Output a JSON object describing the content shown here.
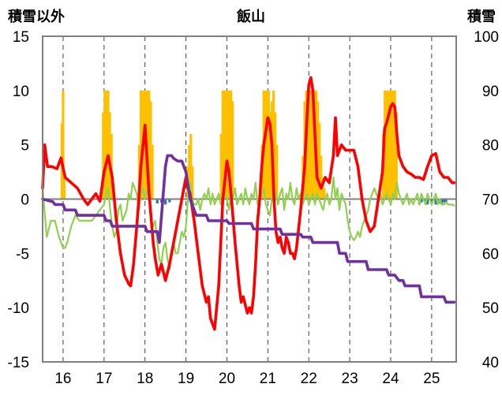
{
  "chart_data": {
    "type": "line",
    "title": "飯山",
    "ylabel_left": "積雪以外",
    "ylabel_right": "積雪",
    "ylim_left": [
      -15,
      15
    ],
    "ylim_right": [
      40,
      100
    ],
    "yticks_left": [
      "15",
      "10",
      "5",
      "0",
      "-5",
      "-10",
      "-15"
    ],
    "yticks_right": [
      "100",
      "90",
      "80",
      "70",
      "60",
      "50",
      "40"
    ],
    "xlim": [
      15.5,
      25.6
    ],
    "xticks": [
      "16",
      "17",
      "18",
      "19",
      "20",
      "21",
      "22",
      "23",
      "24",
      "25"
    ],
    "grid": "vertical dashed",
    "colors": {
      "temperature": "#ff0000",
      "snow_depth": "#7030a0",
      "snowfall": "#ffc000",
      "precip": "#2e75b6",
      "humidity_like": "#92d050",
      "zero_line": "#7f7f7f",
      "frame": "#808080"
    },
    "series": [
      {
        "type": "line",
        "axis": "left",
        "color": "#ff0000",
        "x": [
          15.5,
          15.55,
          15.62,
          15.72,
          15.85,
          15.95,
          16.05,
          16.2,
          16.35,
          16.5,
          16.6,
          16.7,
          16.8,
          16.9,
          17.0,
          17.1,
          17.2,
          17.3,
          17.4,
          17.5,
          17.6,
          17.65,
          17.72,
          17.8,
          17.85,
          17.9,
          18.0,
          18.1,
          18.2,
          18.25,
          18.32,
          18.4,
          18.5,
          18.6,
          18.7,
          18.8,
          18.9,
          19.0,
          19.05,
          19.1,
          19.2,
          19.3,
          19.4,
          19.5,
          19.55,
          19.6,
          19.65,
          19.7,
          19.75,
          19.8,
          19.85,
          19.9,
          20.0,
          20.05,
          20.1,
          20.2,
          20.3,
          20.35,
          20.4,
          20.5,
          20.55,
          20.6,
          20.65,
          20.7,
          20.75,
          20.8,
          20.85,
          20.9,
          21.0,
          21.05,
          21.1,
          21.15,
          21.2,
          21.25,
          21.3,
          21.35,
          21.4,
          21.45,
          21.5,
          21.55,
          21.6,
          21.65,
          21.7,
          21.8,
          21.9,
          21.95,
          22.0,
          22.05,
          22.1,
          22.15,
          22.2,
          22.3,
          22.4,
          22.5,
          22.6,
          22.65,
          22.7,
          22.8,
          22.9,
          23.0,
          23.1,
          23.2,
          23.3,
          23.4,
          23.5,
          23.6,
          23.7,
          23.8,
          23.85,
          23.9,
          24.0,
          24.05,
          24.1,
          24.15,
          24.2,
          24.3,
          24.4,
          24.5,
          24.6,
          24.7,
          24.8,
          24.9,
          25.0,
          25.1,
          25.2,
          25.3,
          25.4,
          25.5,
          25.55
        ],
        "y": [
          1.0,
          5.0,
          3.0,
          3.0,
          2.8,
          3.8,
          2.0,
          1.5,
          1.0,
          0.0,
          -0.5,
          0.0,
          0.5,
          -0.2,
          2.5,
          4.0,
          2.0,
          -2.0,
          -5.0,
          -7.0,
          -7.8,
          -8.0,
          -6.0,
          -2.5,
          0.0,
          3.0,
          6.8,
          0.5,
          -4.0,
          -5.5,
          -7.0,
          -6.0,
          -7.5,
          -6.0,
          -4.0,
          -2.0,
          0.0,
          2.0,
          1.0,
          0.5,
          -2.0,
          -5.0,
          -8.0,
          -9.5,
          -9.0,
          -11.0,
          -11.5,
          -12.0,
          -10.0,
          -8.0,
          -4.0,
          0.0,
          3.5,
          2.5,
          0.5,
          -4.0,
          -8.0,
          -9.5,
          -9.0,
          -10.5,
          -10.0,
          -10.5,
          -9.0,
          -6.0,
          -2.0,
          0.0,
          3.0,
          5.0,
          7.5,
          7.0,
          5.0,
          0.0,
          -3.0,
          -4.0,
          -3.5,
          -4.5,
          -5.0,
          -3.5,
          -4.0,
          -5.0,
          -5.0,
          -5.5,
          -4.5,
          -1.0,
          3.0,
          7.0,
          10.5,
          11.2,
          10.0,
          6.0,
          2.0,
          1.0,
          2.0,
          1.5,
          4.0,
          7.5,
          4.0,
          5.0,
          4.5,
          4.5,
          4.5,
          3.0,
          0.0,
          -2.0,
          -3.0,
          -2.5,
          0.0,
          2.5,
          6.5,
          7.0,
          8.5,
          8.8,
          8.5,
          6.0,
          4.0,
          3.0,
          2.5,
          2.3,
          2.0,
          2.0,
          1.8,
          3.0,
          4.0,
          4.2,
          2.5,
          2.0,
          2.0,
          1.5,
          1.5
        ]
      },
      {
        "type": "line",
        "axis": "left",
        "color": "#92d050",
        "x": [
          15.5,
          15.6,
          15.7,
          15.8,
          15.9,
          16.0,
          16.05,
          16.1,
          16.2,
          16.3,
          16.4,
          16.5,
          16.6,
          16.7,
          16.8,
          16.9,
          17.0,
          17.05,
          17.1,
          17.15,
          17.2,
          17.25,
          17.3,
          17.35,
          17.4,
          17.45,
          17.5,
          17.55,
          17.6,
          17.65,
          17.7,
          17.75,
          17.8,
          17.85,
          17.9,
          17.95,
          18.0,
          18.05,
          18.1,
          18.15,
          18.2,
          18.25,
          18.3,
          18.35,
          18.4,
          18.45,
          18.5,
          18.55,
          18.6,
          18.65,
          18.7,
          18.75,
          18.8,
          18.85,
          18.9,
          18.95,
          19.0,
          19.05,
          19.1,
          19.15,
          19.2,
          19.25,
          19.3,
          19.35,
          19.4,
          19.45,
          19.5,
          19.55,
          19.6,
          19.65,
          19.7,
          19.75,
          19.8,
          19.85,
          19.9,
          19.95,
          20.0,
          20.05,
          20.1,
          20.15,
          20.2,
          20.25,
          20.3,
          20.35,
          20.4,
          20.45,
          20.5,
          20.55,
          20.6,
          20.65,
          20.7,
          20.75,
          20.8,
          20.85,
          20.9,
          20.95,
          21.0,
          21.05,
          21.1,
          21.15,
          21.2,
          21.25,
          21.3,
          21.35,
          21.4,
          21.45,
          21.5,
          21.55,
          21.6,
          21.65,
          21.7,
          21.75,
          21.8,
          21.85,
          21.9,
          21.95,
          22.0,
          22.05,
          22.1,
          22.15,
          22.2,
          22.25,
          22.3,
          22.35,
          22.4,
          22.45,
          22.5,
          22.55,
          22.6,
          22.65,
          22.7,
          22.75,
          22.8,
          22.85,
          22.9,
          22.95,
          23.0,
          23.05,
          23.1,
          23.15,
          23.2,
          23.25,
          23.3,
          23.35,
          23.4,
          23.45,
          23.5,
          23.55,
          23.6,
          23.65,
          23.7,
          23.75,
          23.8,
          23.85,
          23.9,
          23.95,
          24.0,
          24.05,
          24.1,
          24.15,
          24.2,
          24.25,
          24.3,
          24.35,
          24.4,
          24.45,
          24.5,
          24.55,
          24.6,
          24.65,
          24.7,
          24.75,
          24.8,
          24.85,
          24.9,
          24.95,
          25.0,
          25.05,
          25.1,
          25.15,
          25.2,
          25.25,
          25.3,
          25.35,
          25.4,
          25.45,
          25.5,
          25.55
        ],
        "y": [
          1.0,
          -3.5,
          -2.0,
          -2.0,
          -3.5,
          -4.5,
          -4.5,
          -4.0,
          -2.5,
          -1.5,
          -2.0,
          -2.0,
          -2.0,
          -2.0,
          -1.5,
          -1.0,
          -0.5,
          0.5,
          1.0,
          -1.0,
          -2.5,
          -3.5,
          -3.0,
          -1.0,
          -0.5,
          -2.0,
          -1.5,
          -1.0,
          0.5,
          0.0,
          1.5,
          1.0,
          0.5,
          -1.0,
          0.5,
          1.0,
          0.0,
          1.0,
          0.0,
          -2.0,
          -2.5,
          -2.0,
          -4.0,
          -5.5,
          -6.0,
          -4.5,
          -4.0,
          -5.5,
          -6.5,
          -5.0,
          -4.0,
          -5.0,
          -5.0,
          -4.0,
          -3.0,
          -3.5,
          -2.5,
          0.0,
          1.5,
          0.0,
          -0.5,
          -0.5,
          0.0,
          -1.0,
          0.0,
          0.5,
          0.0,
          1.0,
          -0.5,
          0.5,
          -0.5,
          0.0,
          0.5,
          -0.5,
          0.0,
          0.5,
          0.0,
          -1.0,
          0.5,
          0.0,
          1.0,
          -0.5,
          0.0,
          0.5,
          -0.5,
          1.0,
          0.0,
          -0.5,
          0.5,
          0.0,
          1.5,
          -0.5,
          0.0,
          0.5,
          1.0,
          -0.5,
          -1.0,
          -1.5,
          0.0,
          1.0,
          0.5,
          -0.5,
          0.5,
          1.0,
          -1.0,
          0.5,
          0.0,
          1.5,
          0.0,
          -0.5,
          1.0,
          0.0,
          0.5,
          -0.5,
          0.0,
          0.5,
          -0.5,
          0.0,
          0.5,
          -0.5,
          0.5,
          0.0,
          -0.5,
          -1.0,
          0.0,
          0.5,
          -0.5,
          0.0,
          2.0,
          0.0,
          1.0,
          -1.0,
          0.5,
          0.0,
          -0.5,
          -2.0,
          -3.0,
          -3.5,
          -3.8,
          -3.5,
          -3.0,
          -3.5,
          -2.5,
          -2.0,
          -1.5,
          -1.0,
          0.0,
          0.5,
          1.0,
          0.5,
          0.0,
          0.5,
          -0.5,
          0.0,
          0.5,
          0.0,
          -0.5,
          0.5,
          0.0,
          1.5,
          0.5,
          0.0,
          -0.5,
          0.0,
          0.5,
          -0.5,
          0.0,
          -0.5,
          0.0,
          0.5,
          -0.5,
          0.5,
          0.0,
          -0.5,
          0.5,
          0.0,
          -0.5,
          0.0,
          0.5,
          -0.5,
          0.0,
          -0.5,
          -0.5,
          -0.3,
          -0.5,
          -0.5,
          -0.5,
          -0.6
        ]
      },
      {
        "type": "line",
        "axis": "right",
        "color": "#7030a0",
        "x": [
          15.5,
          15.75,
          15.8,
          16.0,
          16.05,
          16.3,
          16.35,
          17.0,
          17.05,
          17.15,
          17.2,
          18.0,
          18.05,
          18.3,
          18.35,
          18.5,
          18.55,
          18.65,
          18.7,
          18.8,
          18.9,
          18.95,
          19.0,
          19.05,
          19.1,
          19.2,
          19.25,
          19.5,
          19.55,
          20.0,
          20.05,
          20.6,
          20.65,
          21.3,
          21.35,
          21.8,
          21.85,
          22.05,
          22.1,
          22.7,
          22.75,
          22.9,
          22.95,
          23.4,
          23.45,
          23.9,
          23.95,
          24.1,
          24.2,
          24.3,
          24.35,
          24.7,
          24.75,
          25.3,
          25.35,
          25.55
        ],
        "y": [
          70,
          69.5,
          69,
          69,
          68,
          68,
          67,
          67,
          66,
          66,
          65,
          65,
          64,
          64,
          62,
          76,
          78,
          78,
          77.5,
          77,
          77,
          76,
          75,
          72.5,
          70,
          68,
          67,
          67,
          66,
          66,
          65.5,
          65.5,
          64.5,
          64.5,
          63.5,
          63.5,
          63,
          63,
          62,
          62,
          60,
          60,
          58.5,
          58.5,
          57,
          57,
          56,
          56,
          55,
          55,
          54,
          54,
          52,
          52,
          51,
          51
        ]
      },
      {
        "type": "bar",
        "axis": "left",
        "color": "#ffc000",
        "x": [
          15.97,
          16.0,
          16.03,
          16.98,
          17.02,
          17.06,
          17.1,
          17.14,
          17.18,
          17.86,
          17.9,
          17.94,
          17.98,
          18.02,
          18.06,
          18.1,
          18.14,
          18.18,
          19.04,
          19.08,
          19.12,
          19.16,
          19.86,
          19.9,
          19.94,
          19.98,
          20.02,
          20.06,
          20.1,
          20.14,
          20.86,
          20.9,
          20.94,
          20.98,
          21.02,
          21.06,
          21.1,
          21.14,
          21.18,
          21.22,
          21.86,
          21.9,
          21.94,
          21.98,
          22.02,
          22.06,
          22.1,
          22.14,
          22.18,
          22.22,
          22.26,
          22.3,
          22.34,
          22.38,
          23.82,
          23.86,
          23.9,
          23.94,
          23.98,
          24.02,
          24.06,
          24.1,
          24.14
        ],
        "y": [
          7,
          10,
          2,
          8,
          10,
          10,
          10,
          8,
          6,
          5,
          10,
          10,
          10,
          10,
          10,
          10,
          9,
          5,
          3,
          5,
          6,
          3,
          6,
          10,
          10,
          10,
          10,
          10,
          10,
          9,
          5,
          10,
          10,
          10,
          10,
          8,
          9,
          10,
          8,
          5,
          4,
          9,
          10,
          10,
          10,
          10,
          10,
          10,
          10,
          9,
          7,
          4,
          2,
          1,
          6,
          10,
          10,
          10,
          10,
          10,
          10,
          10,
          8
        ]
      },
      {
        "type": "bar",
        "axis": "left",
        "color": "#2e75b6",
        "x": [
          18.3,
          18.4,
          18.5,
          18.6,
          24.7,
          24.75,
          24.85,
          24.9,
          25.0,
          25.1,
          25.15,
          25.2,
          25.25,
          25.3,
          25.35
        ],
        "y": [
          -0.4,
          -0.3,
          -0.5,
          -0.3,
          -0.5,
          -0.3,
          -0.4,
          -0.5,
          -0.3,
          -0.5,
          -0.3,
          -0.4,
          -0.5,
          -0.3,
          -0.4
        ]
      }
    ]
  }
}
